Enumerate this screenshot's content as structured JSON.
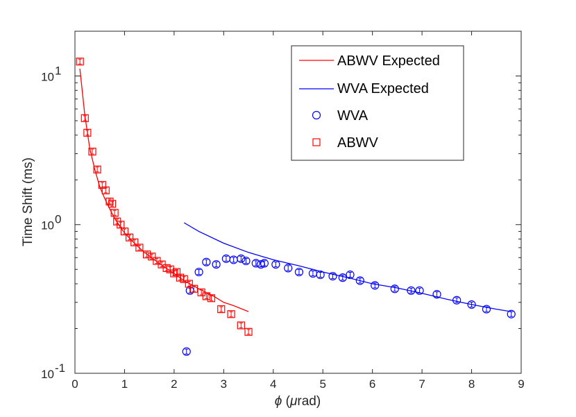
{
  "chart_data": {
    "type": "scatter",
    "title": "",
    "xlabel": "ϕ (μrad)",
    "xlabel_parts": {
      "symbol": "ϕ",
      "open": " (",
      "mu": "μ",
      "unit": "rad)"
    },
    "ylabel": "Time Shift (ms)",
    "xlim": [
      0,
      9
    ],
    "ylim": [
      0.1,
      20
    ],
    "yscale": "log",
    "grid": false,
    "legend_position": "top-right",
    "x_ticks": [
      {
        "value": 0,
        "label": "0"
      },
      {
        "value": 1,
        "label": "1"
      },
      {
        "value": 2,
        "label": "2"
      },
      {
        "value": 3,
        "label": "3"
      },
      {
        "value": 4,
        "label": "4"
      },
      {
        "value": 5,
        "label": "5"
      },
      {
        "value": 6,
        "label": "6"
      },
      {
        "value": 7,
        "label": "7"
      },
      {
        "value": 8,
        "label": "8"
      },
      {
        "value": 9,
        "label": "9"
      }
    ],
    "y_ticks": [
      {
        "value": 0.1,
        "base": "10",
        "exp": "-1"
      },
      {
        "value": 1,
        "base": "10",
        "exp": "0"
      },
      {
        "value": 10,
        "base": "10",
        "exp": "1"
      }
    ],
    "series": [
      {
        "name": "ABWV Expected",
        "kind": "line",
        "color": "#ff0000",
        "x": [
          0.1,
          0.2,
          0.3,
          0.4,
          0.5,
          0.6,
          0.7,
          0.8,
          0.9,
          1.0,
          1.2,
          1.4,
          1.6,
          1.8,
          2.0,
          2.2,
          2.5,
          2.8,
          3.0,
          3.2,
          3.5
        ],
        "y": [
          11.2,
          5.4,
          3.25,
          2.35,
          1.8,
          1.5,
          1.28,
          1.1,
          0.98,
          0.88,
          0.75,
          0.65,
          0.58,
          0.52,
          0.47,
          0.42,
          0.37,
          0.33,
          0.3,
          0.285,
          0.26
        ]
      },
      {
        "name": "WVA Expected",
        "kind": "line",
        "color": "#0000ff",
        "x": [
          2.2,
          2.5,
          3.0,
          3.5,
          4.0,
          4.5,
          5.0,
          5.5,
          6.0,
          6.5,
          7.0,
          7.5,
          8.0,
          8.5,
          8.8
        ],
        "y": [
          1.03,
          0.9,
          0.75,
          0.65,
          0.58,
          0.53,
          0.48,
          0.44,
          0.4,
          0.375,
          0.345,
          0.315,
          0.29,
          0.27,
          0.26
        ]
      },
      {
        "name": "WVA",
        "kind": "scatter",
        "marker": "circle",
        "color": "#0000ff",
        "x": [
          2.25,
          2.32,
          2.5,
          2.65,
          2.85,
          3.05,
          3.2,
          3.35,
          3.45,
          3.65,
          3.75,
          3.82,
          4.05,
          4.3,
          4.52,
          4.8,
          4.95,
          5.2,
          5.4,
          5.55,
          5.75,
          6.05,
          6.45,
          6.78,
          6.95,
          7.3,
          7.7,
          8.0,
          8.3,
          8.8
        ],
        "y": [
          0.14,
          0.36,
          0.48,
          0.56,
          0.54,
          0.59,
          0.58,
          0.59,
          0.57,
          0.55,
          0.54,
          0.55,
          0.54,
          0.51,
          0.48,
          0.47,
          0.46,
          0.45,
          0.44,
          0.46,
          0.42,
          0.39,
          0.37,
          0.36,
          0.36,
          0.34,
          0.31,
          0.29,
          0.27,
          0.25
        ]
      },
      {
        "name": "ABWV",
        "kind": "scatter",
        "marker": "square",
        "color": "#ff0000",
        "x": [
          0.1,
          0.2,
          0.25,
          0.35,
          0.45,
          0.55,
          0.62,
          0.7,
          0.75,
          0.8,
          0.85,
          0.92,
          1.0,
          1.1,
          1.2,
          1.3,
          1.45,
          1.55,
          1.65,
          1.75,
          1.85,
          1.92,
          2.0,
          2.05,
          2.12,
          2.2,
          2.3,
          2.4,
          2.55,
          2.65,
          2.75,
          2.95,
          3.15,
          3.35,
          3.5
        ],
        "y": [
          12.5,
          5.2,
          4.15,
          3.1,
          2.35,
          1.85,
          1.7,
          1.43,
          1.38,
          1.2,
          1.05,
          1.0,
          0.9,
          0.82,
          0.76,
          0.7,
          0.63,
          0.61,
          0.57,
          0.54,
          0.51,
          0.5,
          0.47,
          0.48,
          0.44,
          0.43,
          0.4,
          0.37,
          0.35,
          0.33,
          0.32,
          0.27,
          0.25,
          0.21,
          0.19
        ]
      }
    ]
  }
}
